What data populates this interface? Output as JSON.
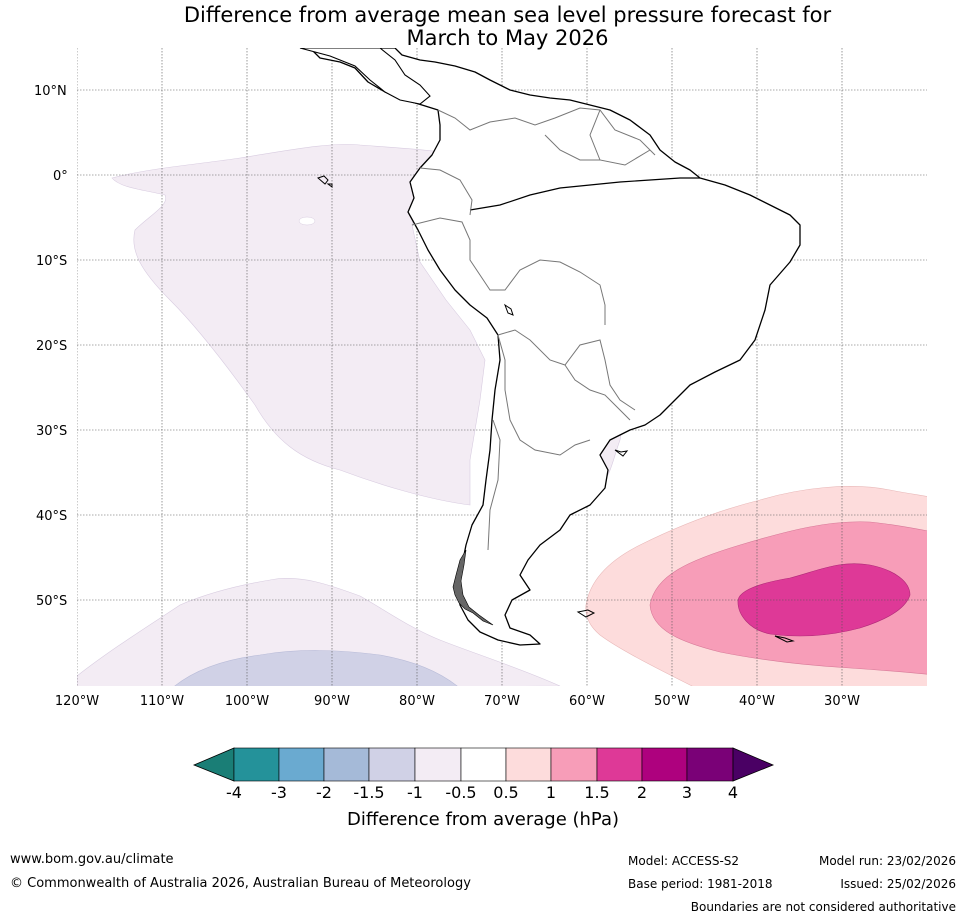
{
  "title": {
    "line1": "Difference from average mean sea level pressure forecast for",
    "line2": "March to May 2026"
  },
  "lat_labels": [
    "10°N",
    "0°",
    "10°S",
    "20°S",
    "30°S",
    "40°S",
    "50°S"
  ],
  "lon_labels": [
    "120°W",
    "110°W",
    "100°W",
    "90°W",
    "80°W",
    "70°W",
    "60°W",
    "50°W",
    "40°W",
    "30°W"
  ],
  "colorbar": {
    "ticks": [
      "-4",
      "-3",
      "-2",
      "-1.5",
      "-1",
      "-0.5",
      "0.5",
      "1",
      "1.5",
      "2",
      "3",
      "4"
    ],
    "colors": [
      "#1a7e76",
      "#24929a",
      "#6aaad0",
      "#a5bad8",
      "#d0d1e6",
      "#f3ecf4",
      "#ffffff",
      "#fddcdc",
      "#f79db8",
      "#de3997",
      "#ae017e",
      "#7a0177",
      "#4a0064"
    ],
    "label": "Difference from average (hPa)"
  },
  "footer": {
    "url": "www.bom.gov.au/climate",
    "copyright": "© Commonwealth of Australia 2026, Australian Bureau of Meteorology",
    "model": "Model: ACCESS-S2",
    "base_period": "Base period: 1981-2018",
    "model_run": "Model run: 23/02/2026",
    "issued": "Issued: 25/02/2026",
    "disclaimer": "Boundaries are not considered authoritative"
  }
}
